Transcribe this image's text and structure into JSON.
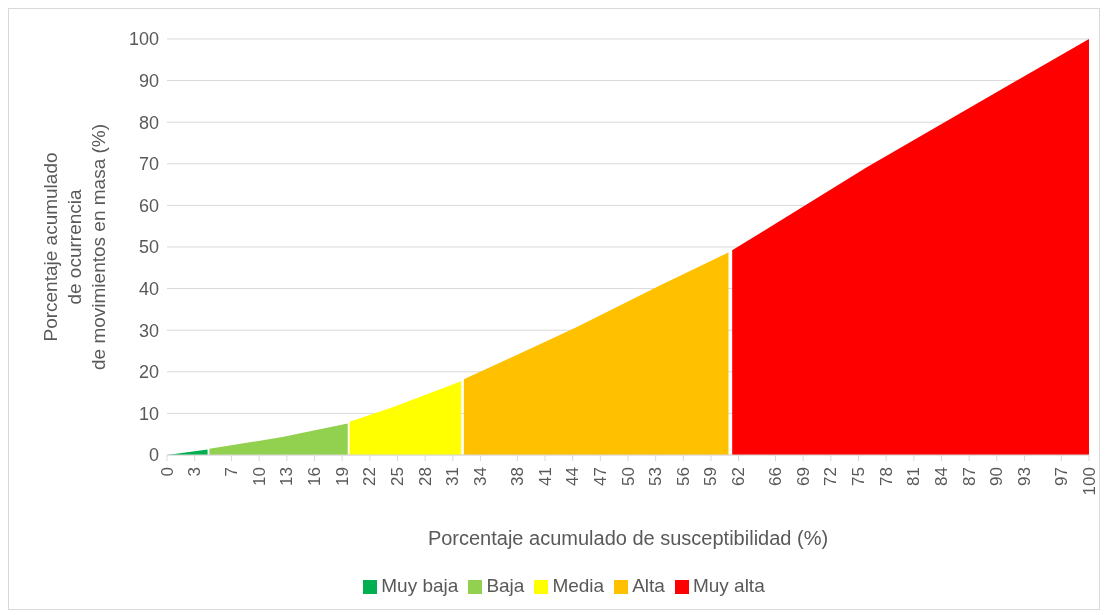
{
  "chart_data": {
    "type": "area",
    "xlabel": "Porcentaje acumulado de susceptibilidad (%)",
    "ylabel": "Porcentaje acumulado\nde ocurrencia\nde movimientos en masa (%)",
    "series": [
      {
        "name": "Muy baja",
        "color": "#00b050",
        "x": [
          0,
          4.4
        ],
        "values": [
          0,
          1.3
        ]
      },
      {
        "name": "Baja",
        "color": "#92d050",
        "x": [
          4.6,
          12.5,
          19.6
        ],
        "values": [
          1.5,
          4.3,
          7.6
        ]
      },
      {
        "name": "Media",
        "color": "#ffff00",
        "x": [
          19.8,
          24.4,
          31.9
        ],
        "values": [
          8.0,
          11.4,
          17.7
        ]
      },
      {
        "name": "Alta",
        "color": "#ffc000",
        "x": [
          32.2,
          44.4,
          53.4,
          60.9
        ],
        "values": [
          18.2,
          30.7,
          40.7,
          48.7
        ]
      },
      {
        "name": "Muy alta",
        "color": "#ff0000",
        "x": [
          61.3,
          75.9,
          89.4,
          100
        ],
        "values": [
          49.2,
          69.2,
          86.5,
          100
        ]
      }
    ],
    "xlim": [
      0,
      100
    ],
    "xticks": [
      0,
      3,
      7,
      10,
      13,
      16,
      19,
      22,
      25,
      28,
      31,
      34,
      38,
      41,
      44,
      47,
      50,
      53,
      56,
      59,
      62,
      66,
      69,
      72,
      75,
      78,
      81,
      84,
      87,
      90,
      93,
      97,
      100
    ],
    "ylim": [
      0,
      100
    ],
    "yticks": [
      0,
      10,
      20,
      30,
      40,
      50,
      60,
      70,
      80,
      90,
      100
    ],
    "grid": "y",
    "legend": "bottom"
  }
}
